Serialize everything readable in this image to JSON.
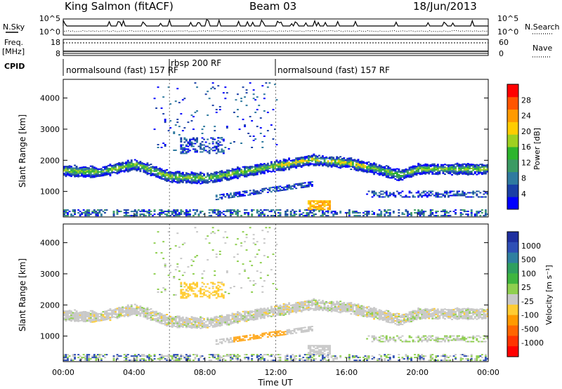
{
  "header": {
    "station": "King Salmon (fitACF)",
    "beam": "Beam 03",
    "date": "18/Jun/2013"
  },
  "noise_panel": {
    "left_label": "N.Sky",
    "right_label": "N.Search",
    "left_ticks": [
      "10^5",
      "10^0"
    ],
    "right_ticks": [
      "10^5",
      "10^0"
    ]
  },
  "freq_panel": {
    "left_label_1": "Freq.",
    "left_label_2": "[MHz]",
    "left_ticks": [
      "18",
      "8"
    ],
    "right_label": "Nave",
    "right_ticks": [
      "60",
      "0"
    ]
  },
  "cpid": {
    "label": "CPID",
    "segments": [
      {
        "text": "normalsound (fast) 157 RF",
        "start": "00:00",
        "end": "06:00"
      },
      {
        "text": "rbsp 200 RF",
        "start": "06:00",
        "end": "12:00"
      },
      {
        "text": "normalsound (fast) 157 RF",
        "start": "12:00",
        "end": "24:00"
      }
    ]
  },
  "power_colorbar": {
    "label": "Power [dB]",
    "ticks": [
      "4",
      "8",
      "12",
      "16",
      "20",
      "24",
      "28"
    ],
    "colors": [
      "#0000ff",
      "#1a3fa6",
      "#2f7a9f",
      "#3b9a63",
      "#2db52d",
      "#9fd020",
      "#ffcc00",
      "#ff9a00",
      "#ff5500",
      "#ff0000"
    ]
  },
  "velocity_colorbar": {
    "label": "Velocity [m s⁻¹]",
    "ticks": [
      "1000",
      "500",
      "100",
      "25",
      "-25",
      "-100",
      "-500",
      "-1000"
    ],
    "colors": [
      "#1f2f9f",
      "#2f4fb5",
      "#2f7fa0",
      "#2f9f5f",
      "#3fb53f",
      "#8fcf4f",
      "#c8c8c8",
      "#ffcc33",
      "#ff9a00",
      "#ff6600",
      "#ff3300",
      "#ff0000"
    ]
  },
  "chart_data": [
    {
      "type": "heatmap",
      "name": "power",
      "ylabel": "Slant Range [km]",
      "xlim": [
        "00:00",
        "24:00"
      ],
      "ylim": [
        180,
        4600
      ],
      "yticks": [
        1000,
        2000,
        3000,
        4000
      ],
      "colorbar_label": "Power [dB]",
      "colorbar_ticks": [
        4,
        8,
        12,
        16,
        20,
        24,
        28
      ],
      "main_band_km": {
        "hours": [
          0,
          2,
          4,
          6,
          8,
          10,
          12,
          14,
          16,
          18,
          19,
          20,
          22,
          24
        ],
        "km": [
          1650,
          1600,
          1850,
          1450,
          1400,
          1600,
          1800,
          2000,
          1900,
          1650,
          1500,
          1700,
          1700,
          1700
        ]
      }
    },
    {
      "type": "heatmap",
      "name": "velocity",
      "ylabel": "Slant Range [km]",
      "xlabel": "Time UT",
      "xlim": [
        "00:00",
        "24:00"
      ],
      "ylim": [
        180,
        4600
      ],
      "yticks": [
        1000,
        2000,
        3000,
        4000
      ],
      "xticks": [
        "00:00",
        "04:00",
        "08:00",
        "12:00",
        "16:00",
        "20:00",
        "00:00"
      ],
      "colorbar_label": "Velocity [m s⁻¹]",
      "colorbar_ticks": [
        1000,
        500,
        100,
        25,
        -25,
        -100,
        -500,
        -1000
      ]
    }
  ]
}
